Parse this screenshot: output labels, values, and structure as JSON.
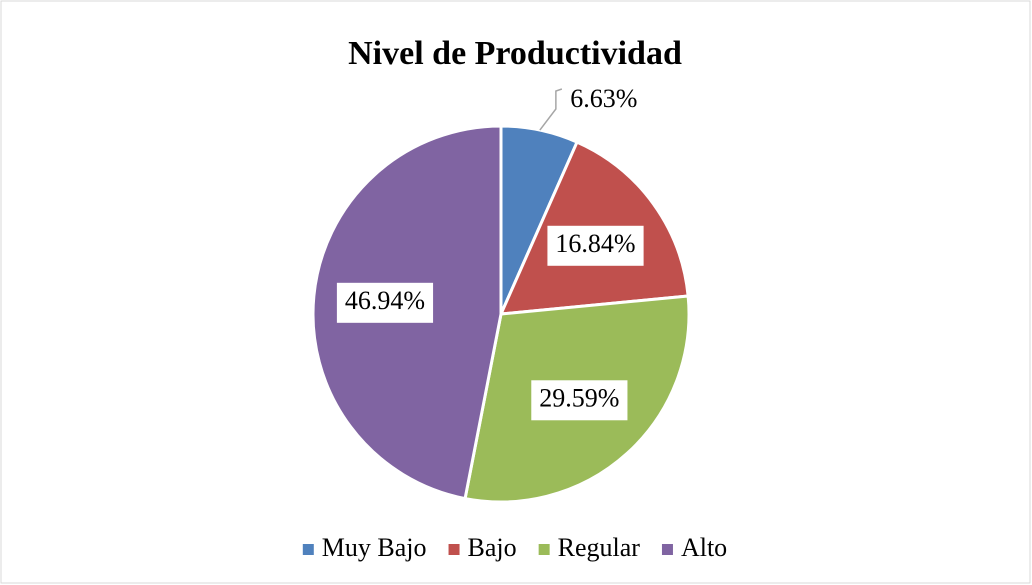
{
  "chart_data": {
    "type": "pie",
    "title": "Nivel de Productividad",
    "categories": [
      "Muy Bajo",
      "Bajo",
      "Regular",
      "Alto"
    ],
    "values": [
      6.63,
      16.84,
      29.59,
      46.94
    ],
    "value_labels": [
      "6.63%",
      "16.84%",
      "29.59%",
      "46.94%"
    ],
    "colors": [
      "#4f81bd",
      "#c0504d",
      "#9bbb59",
      "#8064a2"
    ],
    "legend": "bottom"
  }
}
